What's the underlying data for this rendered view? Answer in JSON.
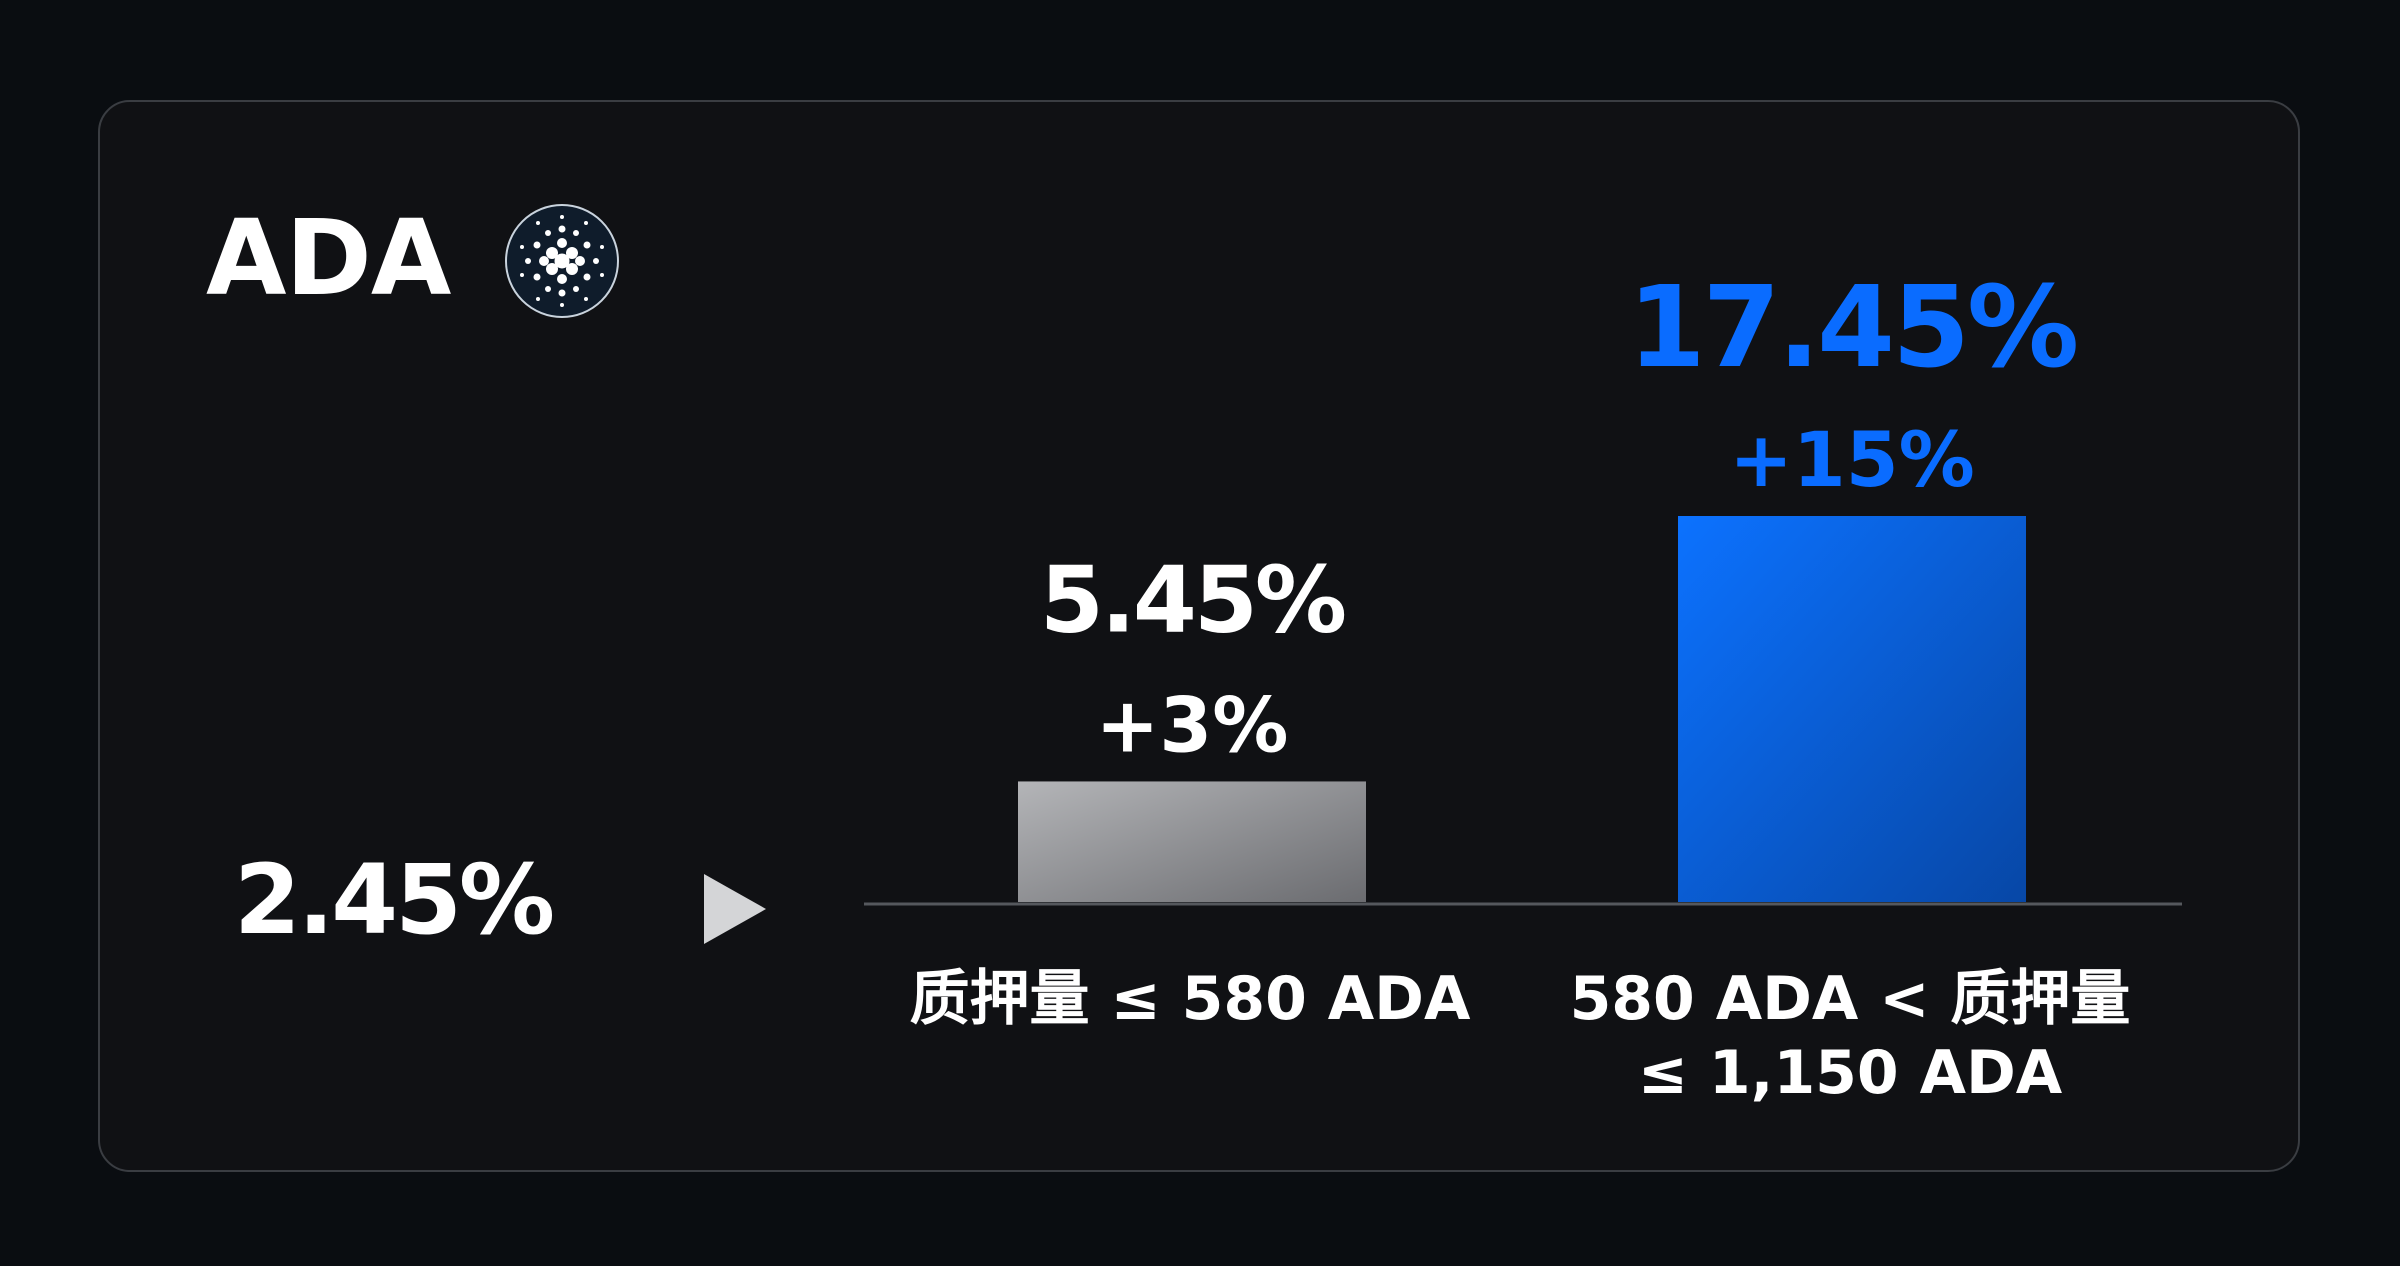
{
  "coin": {
    "name": "ADA",
    "logo_icon": "cardano-icon"
  },
  "base": {
    "rate": "2.45%",
    "arrow_icon": "play-arrow-icon"
  },
  "colors": {
    "background": "#0a0d11",
    "card": "#101114",
    "accent_blue": "#0a6cff",
    "gray_bar": "#8a8b8e",
    "text": "#ffffff",
    "axis": "#55585d"
  },
  "chart_data": {
    "type": "bar",
    "categories": [
      "质押量 ≤  580 ADA",
      "580 ADA < 质押量 ≤ 1,150 ADA"
    ],
    "category_lines": [
      [
        "质押量 ≤  580 ADA"
      ],
      [
        "580 ADA < 质押量",
        "≤ 1,150 ADA"
      ]
    ],
    "values": [
      5.45,
      17.45
    ],
    "value_labels": [
      "5.45%",
      "17.45%"
    ],
    "bonus_labels": [
      "+3%",
      "+15%"
    ],
    "unit": "%",
    "ylim": [
      0,
      17.45
    ],
    "grid": false,
    "legend": "none"
  }
}
